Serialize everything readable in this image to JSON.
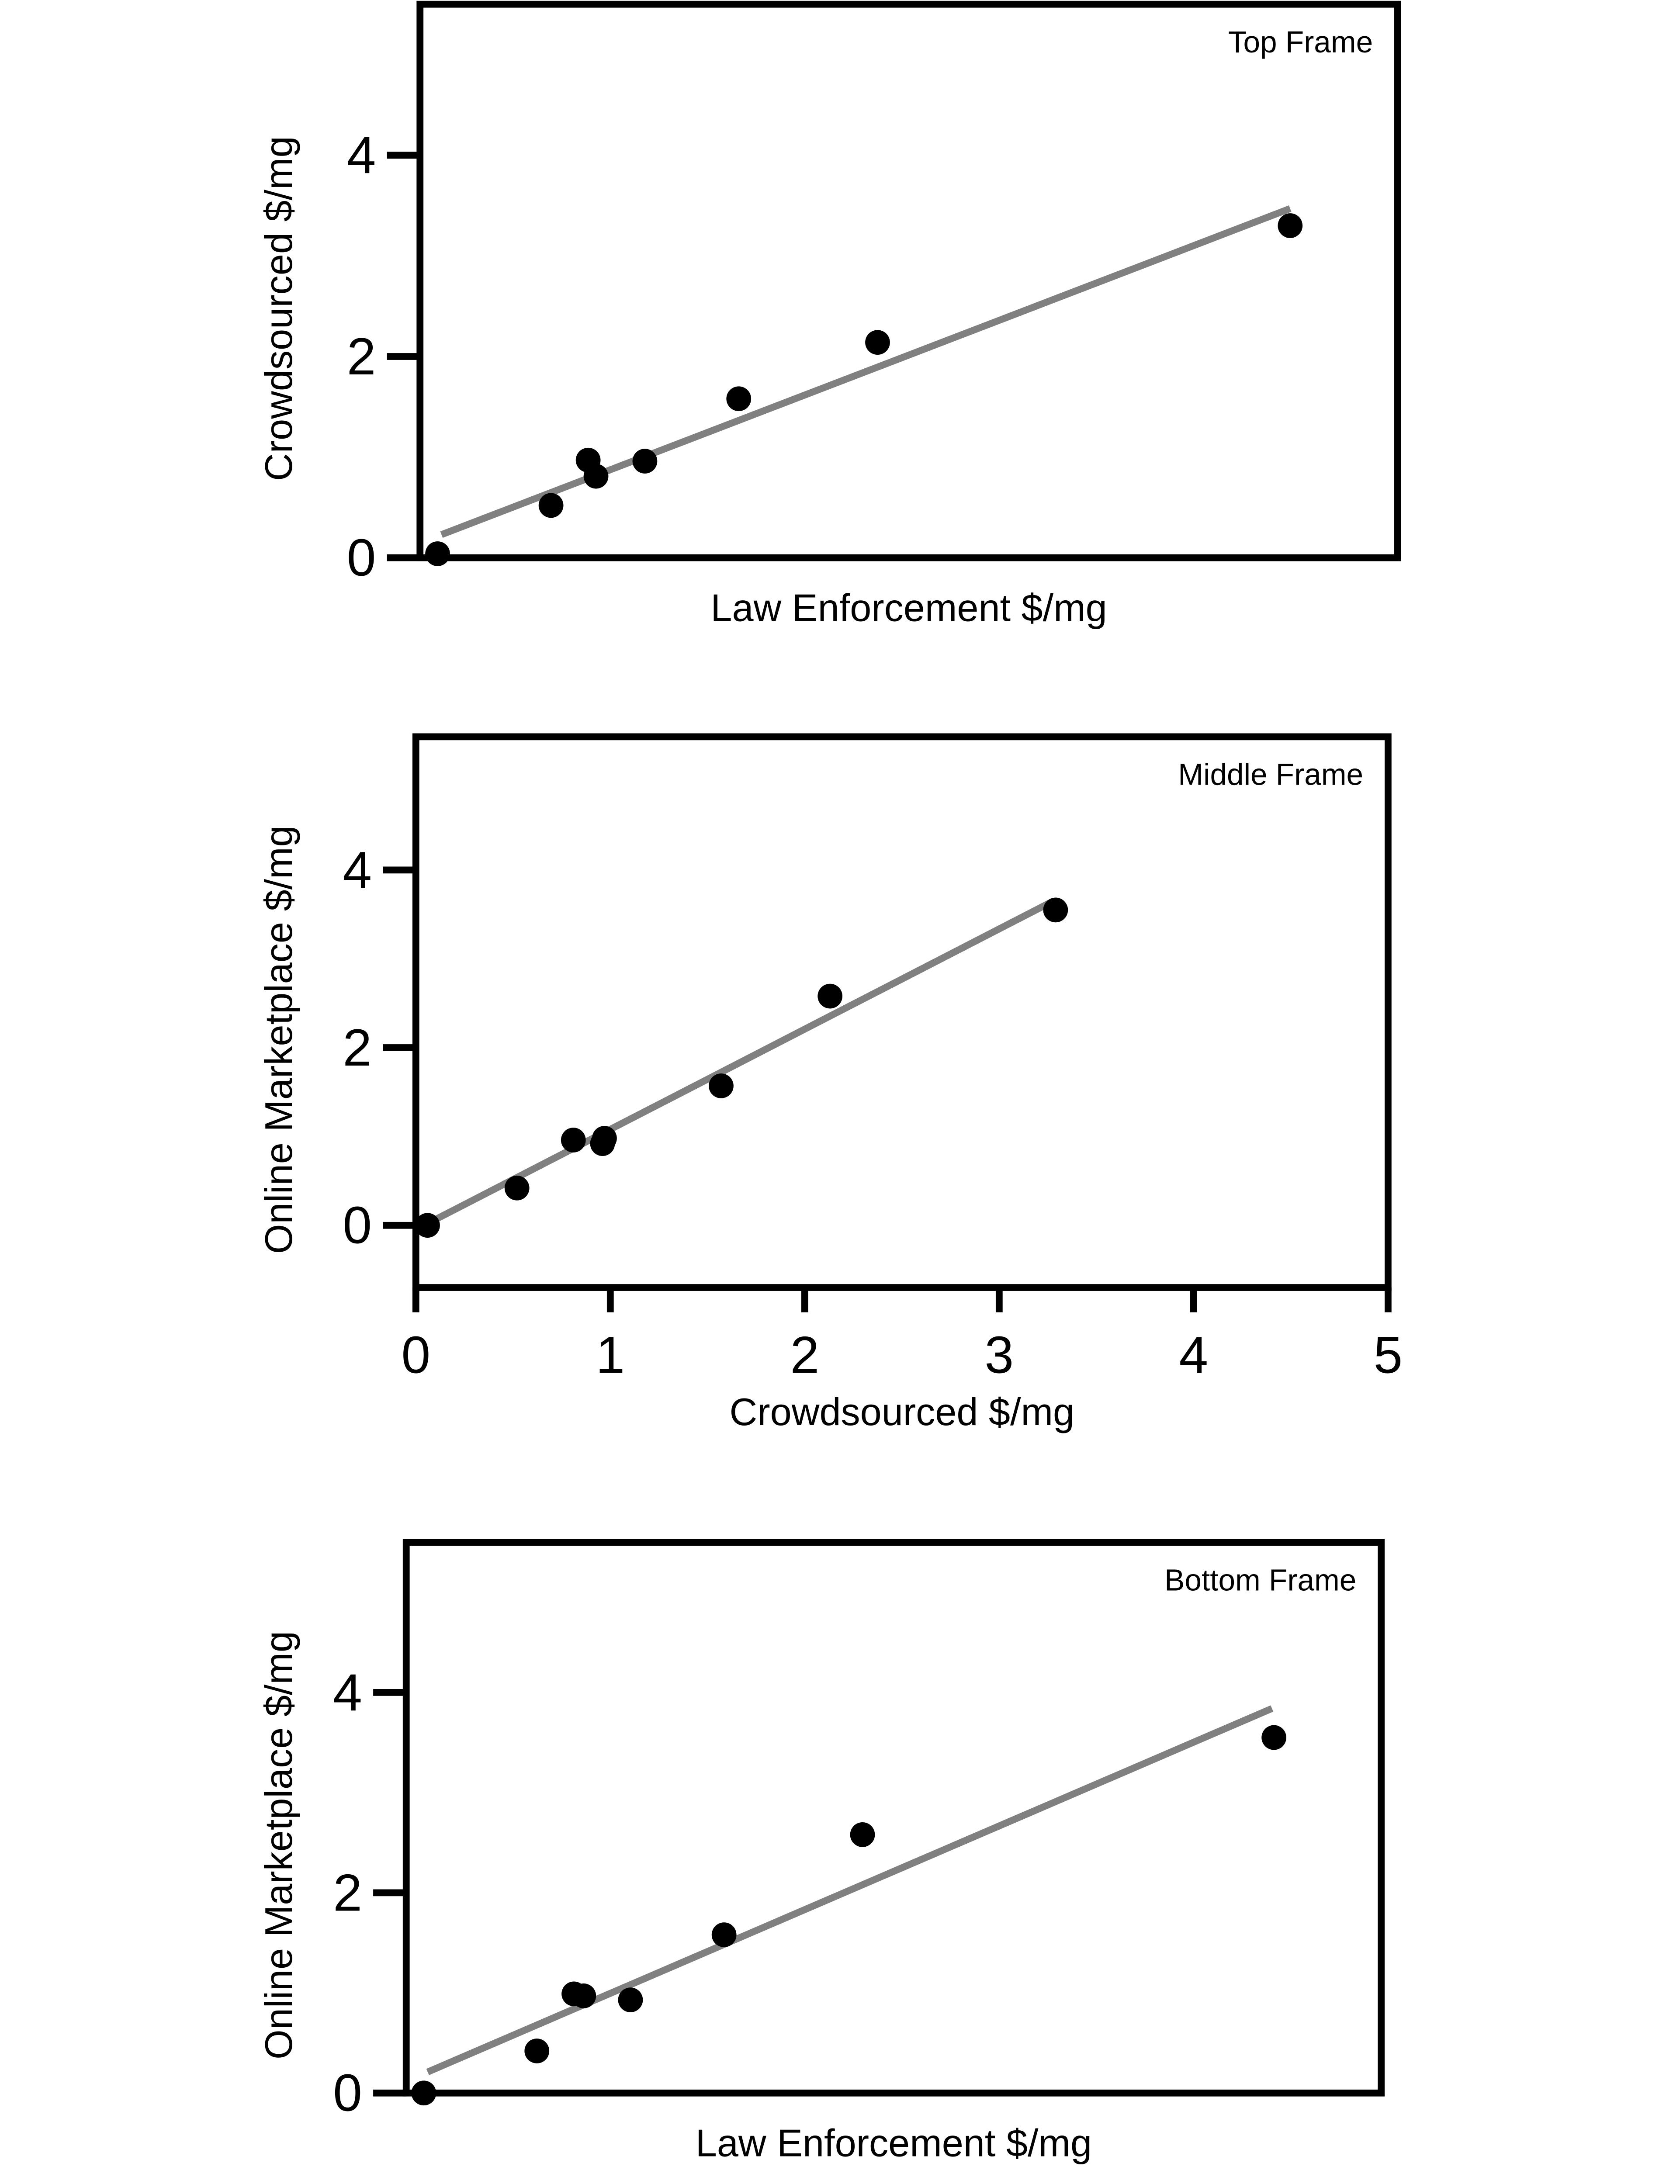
{
  "chart_data": [
    {
      "type": "scatter",
      "annotation": "Top Frame",
      "xlabel": "Law Enforcement $/mg",
      "ylabel": "Crowdsourced $/mg",
      "x": [
        0.09,
        0.67,
        0.86,
        0.9,
        1.15,
        1.63,
        2.34,
        4.45
      ],
      "y": [
        0.04,
        0.52,
        0.97,
        0.81,
        0.96,
        1.58,
        2.14,
        3.3
      ],
      "trendline": {
        "x": [
          0.11,
          4.45
        ],
        "y": [
          0.23,
          3.47
        ],
        "color": "#808080"
      },
      "color": "#000000",
      "xlim": [
        0,
        5
      ],
      "ylim": [
        0,
        5.5
      ],
      "yticks": [
        0,
        2,
        4
      ]
    },
    {
      "type": "scatter",
      "annotation": "Middle Frame",
      "xlabel": "Crowdsourced $/mg",
      "ylabel": "Online Marketplace $/mg",
      "x": [
        0.06,
        0.52,
        0.81,
        0.96,
        0.97,
        1.57,
        2.13,
        3.29
      ],
      "y": [
        0,
        0.42,
        0.96,
        0.92,
        0.98,
        1.57,
        2.58,
        3.55
      ],
      "trendline": {
        "x": [
          0.06,
          3.26
        ],
        "y": [
          0.02,
          3.63
        ],
        "color": "#808080"
      },
      "color": "#000000",
      "xlim": [
        0,
        5
      ],
      "ylim": [
        -0.7,
        5.5
      ],
      "xticks": [
        0,
        1,
        2,
        3,
        4,
        5
      ],
      "yticks": [
        0,
        2,
        4
      ]
    },
    {
      "type": "scatter",
      "annotation": "Bottom Frame",
      "xlabel": "Law Enforcement $/mg",
      "ylabel": "Online Marketplace $/mg",
      "x": [
        0.09,
        0.67,
        0.86,
        0.91,
        1.15,
        1.63,
        2.34,
        4.45
      ],
      "y": [
        0,
        0.42,
        0.99,
        0.97,
        0.93,
        1.58,
        2.58,
        3.55
      ],
      "trendline": {
        "x": [
          0.11,
          4.44
        ],
        "y": [
          0.21,
          3.84
        ],
        "color": "#808080"
      },
      "color": "#000000",
      "xlim": [
        0,
        5
      ],
      "ylim": [
        0,
        5.5
      ],
      "yticks": [
        0,
        2,
        4
      ]
    }
  ]
}
